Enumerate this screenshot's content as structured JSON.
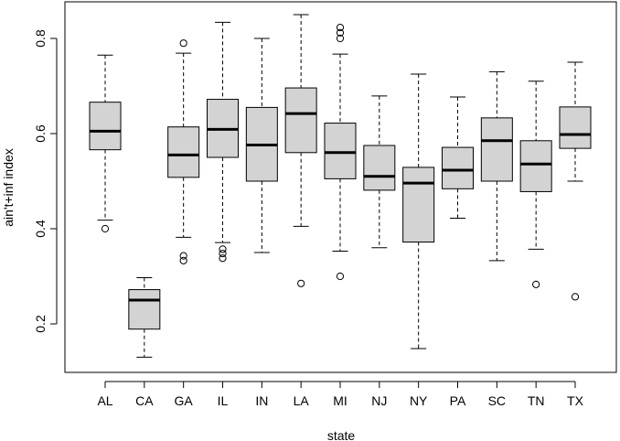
{
  "chart_data": {
    "type": "boxplot",
    "title": "",
    "xlabel": "state",
    "ylabel": "ain't+inf index",
    "ylim": [
      0.1,
      0.87
    ],
    "yticks": [
      0.2,
      0.4,
      0.6,
      0.8
    ],
    "categories": [
      "AL",
      "CA",
      "GA",
      "IL",
      "IN",
      "LA",
      "MI",
      "NJ",
      "NY",
      "PA",
      "SC",
      "TN",
      "TX"
    ],
    "boxes": [
      {
        "name": "AL",
        "min": 0.418,
        "q1": 0.566,
        "median": 0.605,
        "q3": 0.666,
        "max": 0.765,
        "outliers": [
          0.4
        ]
      },
      {
        "name": "CA",
        "min": 0.13,
        "q1": 0.189,
        "median": 0.25,
        "q3": 0.272,
        "max": 0.297,
        "outliers": []
      },
      {
        "name": "GA",
        "min": 0.382,
        "q1": 0.508,
        "median": 0.555,
        "q3": 0.614,
        "max": 0.769,
        "outliers": [
          0.79,
          0.343,
          0.333
        ]
      },
      {
        "name": "IL",
        "min": 0.371,
        "q1": 0.55,
        "median": 0.609,
        "q3": 0.672,
        "max": 0.834,
        "outliers": [
          0.357,
          0.348,
          0.338
        ]
      },
      {
        "name": "IN",
        "min": 0.35,
        "q1": 0.5,
        "median": 0.576,
        "q3": 0.655,
        "max": 0.8,
        "outliers": []
      },
      {
        "name": "LA",
        "min": 0.405,
        "q1": 0.56,
        "median": 0.642,
        "q3": 0.696,
        "max": 0.85,
        "outliers": [
          0.285
        ]
      },
      {
        "name": "MI",
        "min": 0.353,
        "q1": 0.505,
        "median": 0.56,
        "q3": 0.622,
        "max": 0.767,
        "outliers": [
          0.823,
          0.812,
          0.8,
          0.3
        ]
      },
      {
        "name": "NJ",
        "min": 0.36,
        "q1": 0.481,
        "median": 0.51,
        "q3": 0.575,
        "max": 0.679,
        "outliers": []
      },
      {
        "name": "NY",
        "min": 0.148,
        "q1": 0.372,
        "median": 0.496,
        "q3": 0.529,
        "max": 0.725,
        "outliers": []
      },
      {
        "name": "PA",
        "min": 0.422,
        "q1": 0.484,
        "median": 0.523,
        "q3": 0.571,
        "max": 0.677,
        "outliers": []
      },
      {
        "name": "SC",
        "min": 0.333,
        "q1": 0.5,
        "median": 0.585,
        "q3": 0.633,
        "max": 0.73,
        "outliers": []
      },
      {
        "name": "TN",
        "min": 0.357,
        "q1": 0.478,
        "median": 0.536,
        "q3": 0.585,
        "max": 0.71,
        "outliers": [
          0.283
        ]
      },
      {
        "name": "TX",
        "min": 0.5,
        "q1": 0.569,
        "median": 0.598,
        "q3": 0.656,
        "max": 0.75,
        "outliers": [
          0.257
        ]
      }
    ],
    "box_fill": "#d3d3d3",
    "grid": false,
    "legend": "none"
  }
}
